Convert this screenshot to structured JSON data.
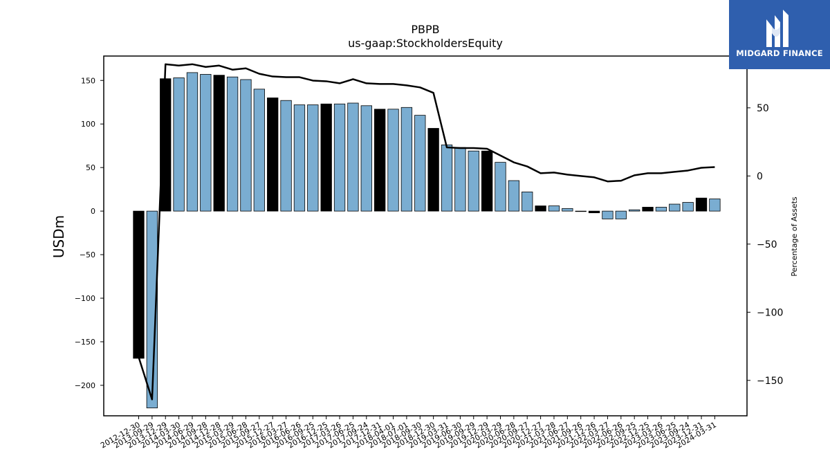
{
  "chart_data": {
    "type": "bar",
    "title": "PBPB",
    "subtitle": "us-gaap:StockholdersEquity",
    "ylabel": "USDm",
    "y2label": "Percentage of Assets",
    "ylim": [
      -235,
      178
    ],
    "y2lim": [
      -176,
      88
    ],
    "yticks": [
      150,
      100,
      50,
      0,
      -50,
      -100,
      -150,
      -200
    ],
    "y2ticks": [
      50,
      0,
      -50,
      -100,
      -150
    ],
    "categories": [
      "2012-12-30",
      "2013-09-29",
      "2013-12-29",
      "2014-03-30",
      "2014-06-29",
      "2014-09-28",
      "2014-12-28",
      "2015-03-29",
      "2015-06-28",
      "2015-09-27",
      "2015-12-27",
      "2016-03-27",
      "2016-06-26",
      "2016-09-25",
      "2016-12-25",
      "2017-03-26",
      "2017-06-25",
      "2017-09-24",
      "2017-12-31",
      "2018-04-01",
      "2018-07-01",
      "2018-09-30",
      "2018-12-30",
      "2019-03-31",
      "2019-06-30",
      "2019-09-29",
      "2019-12-29",
      "2020-03-29",
      "2020-06-28",
      "2020-09-27",
      "2020-12-27",
      "2021-03-28",
      "2021-06-27",
      "2021-09-26",
      "2021-12-26",
      "2022-03-27",
      "2022-06-26",
      "2022-09-25",
      "2022-12-25",
      "2023-03-26",
      "2023-06-25",
      "2023-09-24",
      "2023-12-31",
      "2024-03-31"
    ],
    "values": [
      -169,
      -226,
      152,
      153,
      159,
      157,
      156,
      154,
      151,
      140,
      130,
      127,
      122,
      122,
      123,
      123,
      124,
      121,
      117,
      117,
      119,
      110,
      95,
      76,
      73,
      69,
      69,
      56,
      35,
      22,
      6,
      6,
      3,
      -0.5,
      -2,
      -9,
      -9,
      1.5,
      4.5,
      4.5,
      8,
      10,
      15,
      14
    ],
    "highlight": [
      true,
      false,
      true,
      false,
      false,
      false,
      true,
      false,
      false,
      false,
      true,
      false,
      false,
      false,
      true,
      false,
      false,
      false,
      true,
      false,
      false,
      false,
      true,
      false,
      false,
      false,
      true,
      false,
      false,
      false,
      true,
      false,
      false,
      false,
      true,
      false,
      false,
      false,
      true,
      false,
      false,
      false,
      true,
      false
    ],
    "series": [
      {
        "values": [
          -133,
          -164,
          82,
          81,
          82,
          80,
          81,
          78,
          79,
          75,
          73,
          72.5,
          72.5,
          70,
          69.5,
          68,
          71,
          68,
          67.5,
          67.5,
          66.5,
          65,
          61,
          21,
          20.5,
          20.5,
          20,
          15,
          10,
          7,
          2,
          2.5,
          1,
          0,
          -1,
          -4,
          -3.5,
          0.5,
          2,
          2,
          3,
          4,
          6,
          6.5
        ]
      }
    ],
    "colors": {
      "bar": "#7aadd1",
      "highlight": "#000000",
      "line": "#000000"
    },
    "grid": false,
    "logo_text": "MIDGARD FINANCE"
  }
}
